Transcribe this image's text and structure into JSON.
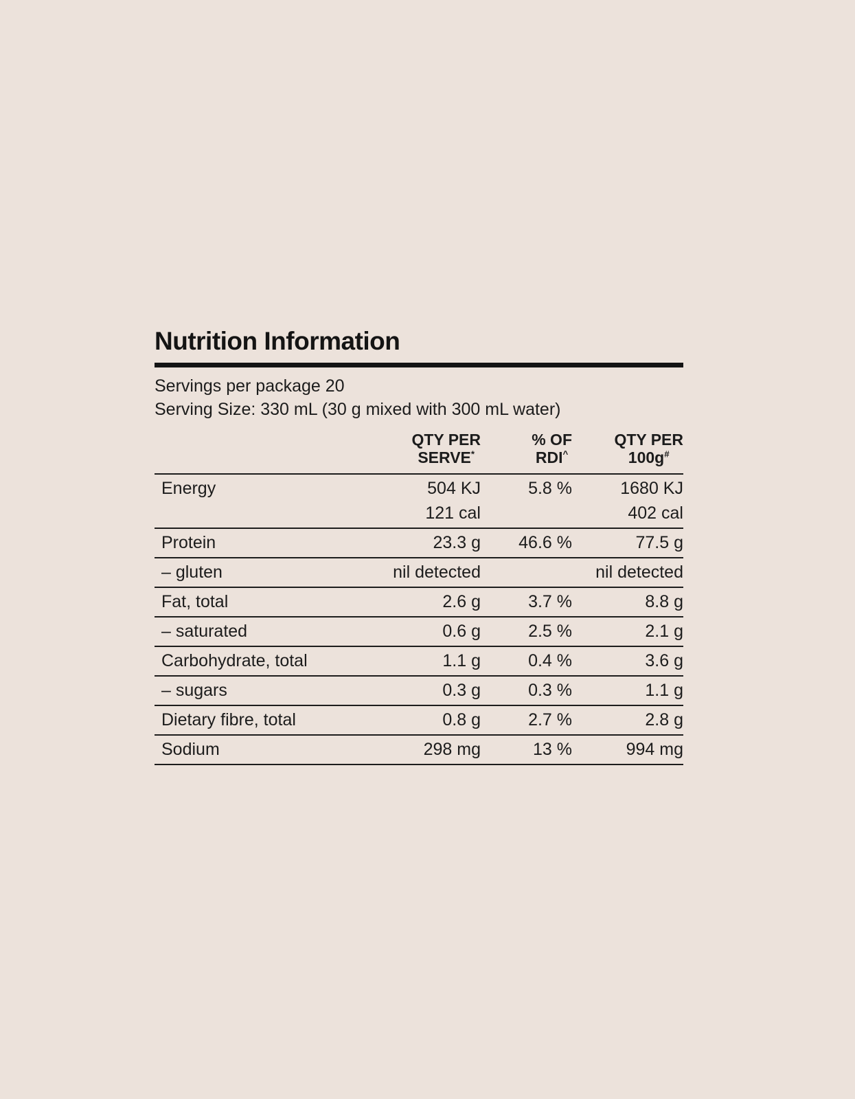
{
  "panel": {
    "title": "Nutrition Information",
    "servings_per_package": "Servings per package 20",
    "serving_size": "Serving Size: 330 mL (30 g mixed with 300 mL water)",
    "columns": {
      "serve": {
        "line1": "QTY PER",
        "line2": "SERVE",
        "sup": "*"
      },
      "rdi": {
        "line1": "% OF",
        "line2": "RDI",
        "sup": "^"
      },
      "per100": {
        "line1": "QTY PER",
        "line2": "100g",
        "sup": "#"
      }
    },
    "rows": [
      {
        "label": "Energy",
        "serve": "504 KJ",
        "rdi": "5.8 %",
        "per100": "1680 KJ"
      },
      {
        "label": "",
        "serve": "121 cal",
        "rdi": "",
        "per100": "402 cal"
      },
      {
        "label": "Protein",
        "serve": "23.3 g",
        "rdi": "46.6 %",
        "per100": "77.5 g"
      },
      {
        "label": "– gluten",
        "serve": "nil detected",
        "rdi": "",
        "per100": "nil detected"
      },
      {
        "label": "Fat, total",
        "serve": "2.6 g",
        "rdi": "3.7 %",
        "per100": "8.8 g"
      },
      {
        "label": "– saturated",
        "serve": "0.6 g",
        "rdi": "2.5 %",
        "per100": "2.1 g"
      },
      {
        "label": "Carbohydrate, total",
        "serve": "1.1 g",
        "rdi": "0.4 %",
        "per100": "3.6 g"
      },
      {
        "label": "– sugars",
        "serve": "0.3 g",
        "rdi": "0.3 %",
        "per100": "1.1 g"
      },
      {
        "label": "Dietary fibre, total",
        "serve": "0.8 g",
        "rdi": "2.7 %",
        "per100": "2.8 g"
      },
      {
        "label": "Sodium",
        "serve": "298 mg",
        "rdi": "13 %",
        "per100": "994 mg"
      }
    ]
  }
}
